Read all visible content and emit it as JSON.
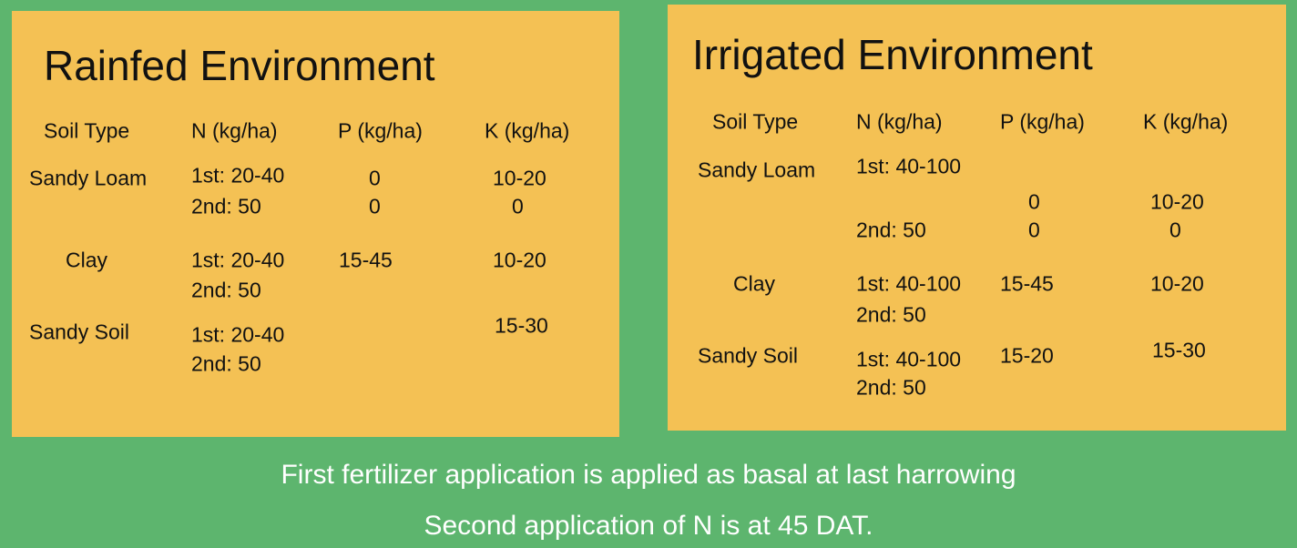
{
  "colors": {
    "background": "#5db56e",
    "panel": "#f4c154",
    "footer_text": "#ffffff"
  },
  "rainfed": {
    "title": "Rainfed Environment",
    "headers": [
      "Soil Type",
      "N (kg/ha)",
      "P (kg/ha)",
      "K (kg/ha)"
    ],
    "rows": [
      {
        "soil": "Sandy Loam",
        "n1": "1st: 20-40",
        "n2": "2nd: 50",
        "p1": "0",
        "p2": "0",
        "k1": "10-20",
        "k2": "0"
      },
      {
        "soil": "Clay",
        "n1": "1st: 20-40",
        "n2": "2nd: 50",
        "p1": "15-45",
        "k1": "10-20"
      },
      {
        "soil": "Sandy Soil",
        "n1": "1st: 20-40",
        "n2": "2nd: 50",
        "k1": "15-30"
      }
    ]
  },
  "irrigated": {
    "title": "Irrigated Environment",
    "headers": [
      "Soil Type",
      "N (kg/ha)",
      "P (kg/ha)",
      "K (kg/ha)"
    ],
    "rows": [
      {
        "soil": "Sandy Loam",
        "n1": "1st: 40-100",
        "n2": "2nd: 50",
        "p1": "0",
        "p2": "0",
        "k1": "10-20",
        "k2": "0"
      },
      {
        "soil": "Clay",
        "n1": "1st: 40-100",
        "n2": "2nd: 50",
        "p1": "15-45",
        "k1": "10-20"
      },
      {
        "soil": "Sandy Soil",
        "n1": "1st: 40-100",
        "n2": "2nd: 50",
        "p1": "15-20",
        "k1": "15-30"
      }
    ]
  },
  "footer": {
    "line1": "First fertilizer application is applied as basal at last harrowing",
    "line2": "Second application of N is at 45 DAT."
  }
}
